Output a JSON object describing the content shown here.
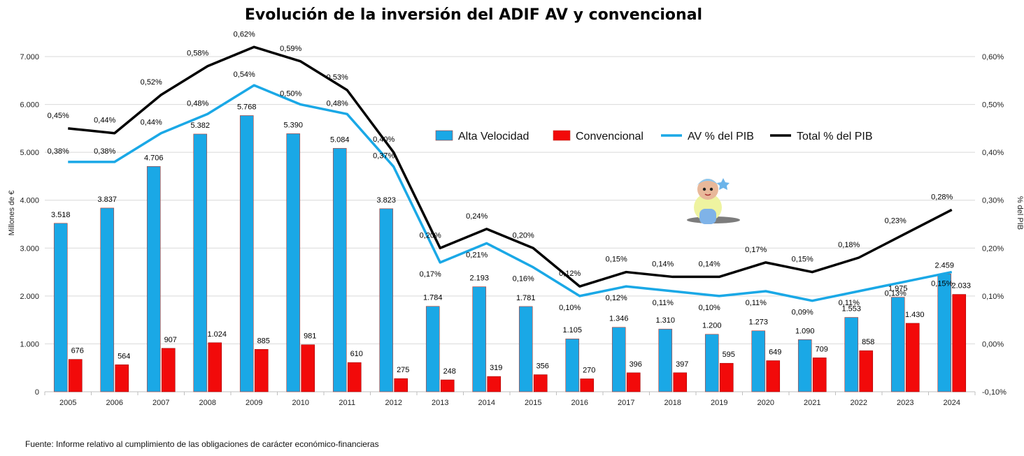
{
  "chart_data": {
    "type": "bar",
    "title": "Evolución de la inversión del ADIF AV y convencional",
    "categories": [
      "2005",
      "2006",
      "2007",
      "2008",
      "2009",
      "2010",
      "2011",
      "2012",
      "2013",
      "2014",
      "2015",
      "2016",
      "2017",
      "2018",
      "2019",
      "2020",
      "2021",
      "2022",
      "2023",
      "2024"
    ],
    "series": [
      {
        "name": "Alta Velocidad",
        "kind": "bar",
        "axis": "left",
        "color": "#1AA8E6",
        "values": [
          3518,
          3837,
          4706,
          5382,
          5768,
          5390,
          5084,
          3823,
          1784,
          2193,
          1781,
          1105,
          1346,
          1310,
          1200,
          1273,
          1090,
          1553,
          1975,
          2459
        ],
        "labels": [
          "3.518",
          "3.837",
          "4.706",
          "5.382",
          "5.768",
          "5.390",
          "5.084",
          "3.823",
          "1.784",
          "2.193",
          "1.781",
          "1.105",
          "1.346",
          "1.310",
          "1.200",
          "1.273",
          "1.090",
          "1.553",
          "1.975",
          "2.459"
        ]
      },
      {
        "name": "Convencional",
        "kind": "bar",
        "axis": "left",
        "color": "#F20A0A",
        "values": [
          676,
          564,
          907,
          1024,
          885,
          981,
          610,
          275,
          248,
          319,
          356,
          270,
          396,
          397,
          595,
          649,
          709,
          858,
          1430,
          2033
        ],
        "labels": [
          "676",
          "564",
          "907",
          "1.024",
          "885",
          "981",
          "610",
          "275",
          "248",
          "319",
          "356",
          "270",
          "396",
          "397",
          "595",
          "649",
          "709",
          "858",
          "1.430",
          "2.033"
        ]
      },
      {
        "name": "AV % del PIB",
        "kind": "line",
        "axis": "right",
        "color": "#1AA8E6",
        "values": [
          0.38,
          0.38,
          0.44,
          0.48,
          0.54,
          0.5,
          0.48,
          0.37,
          0.17,
          0.21,
          0.16,
          0.1,
          0.12,
          0.11,
          0.1,
          0.11,
          0.09,
          0.11,
          0.13,
          0.15
        ],
        "labels": [
          "0,38%",
          "0,38%",
          "0,44%",
          "0,48%",
          "0,54%",
          "0,50%",
          "0,48%",
          "0,37%",
          "0,17%",
          "0,21%",
          "0,16%",
          "0,10%",
          "0,12%",
          "0,11%",
          "0,10%",
          "0,11%",
          "0,09%",
          "0,11%",
          "0,13%",
          "0,15%"
        ]
      },
      {
        "name": "Total % del PIB",
        "kind": "line",
        "axis": "right",
        "color": "#000000",
        "values": [
          0.45,
          0.44,
          0.52,
          0.58,
          0.62,
          0.59,
          0.53,
          0.4,
          0.2,
          0.24,
          0.2,
          0.12,
          0.15,
          0.14,
          0.14,
          0.17,
          0.15,
          0.18,
          0.23,
          0.28
        ],
        "labels": [
          "0,45%",
          "0,44%",
          "0,52%",
          "0,58%",
          "0,62%",
          "0,59%",
          "0,53%",
          "0,40%",
          "0,20%",
          "0,24%",
          "0,20%",
          "0,12%",
          "0,15%",
          "0,14%",
          "0,14%",
          "0,17%",
          "0,15%",
          "0,18%",
          "0,23%",
          "0,28%"
        ]
      }
    ],
    "ylabel": "Millones de €",
    "y2label": "% del PIB",
    "ylim": [
      0,
      7000
    ],
    "y2lim": [
      -0.1,
      0.6
    ],
    "yticks": [
      "0",
      "1.000",
      "2.000",
      "3.000",
      "4.000",
      "5.000",
      "6.000",
      "7.000"
    ],
    "y2ticks": [
      "-0,10%",
      "0,00%",
      "0,10%",
      "0,20%",
      "0,30%",
      "0,40%",
      "0,50%",
      "0,60%"
    ],
    "grid": true,
    "legend": "inside-top-right"
  },
  "source_note": "Fuente: Informe relativo al cumplimiento de las obligaciones de carácter económico-financieras",
  "decoration": {
    "mascot": "doll-mascot-image"
  }
}
